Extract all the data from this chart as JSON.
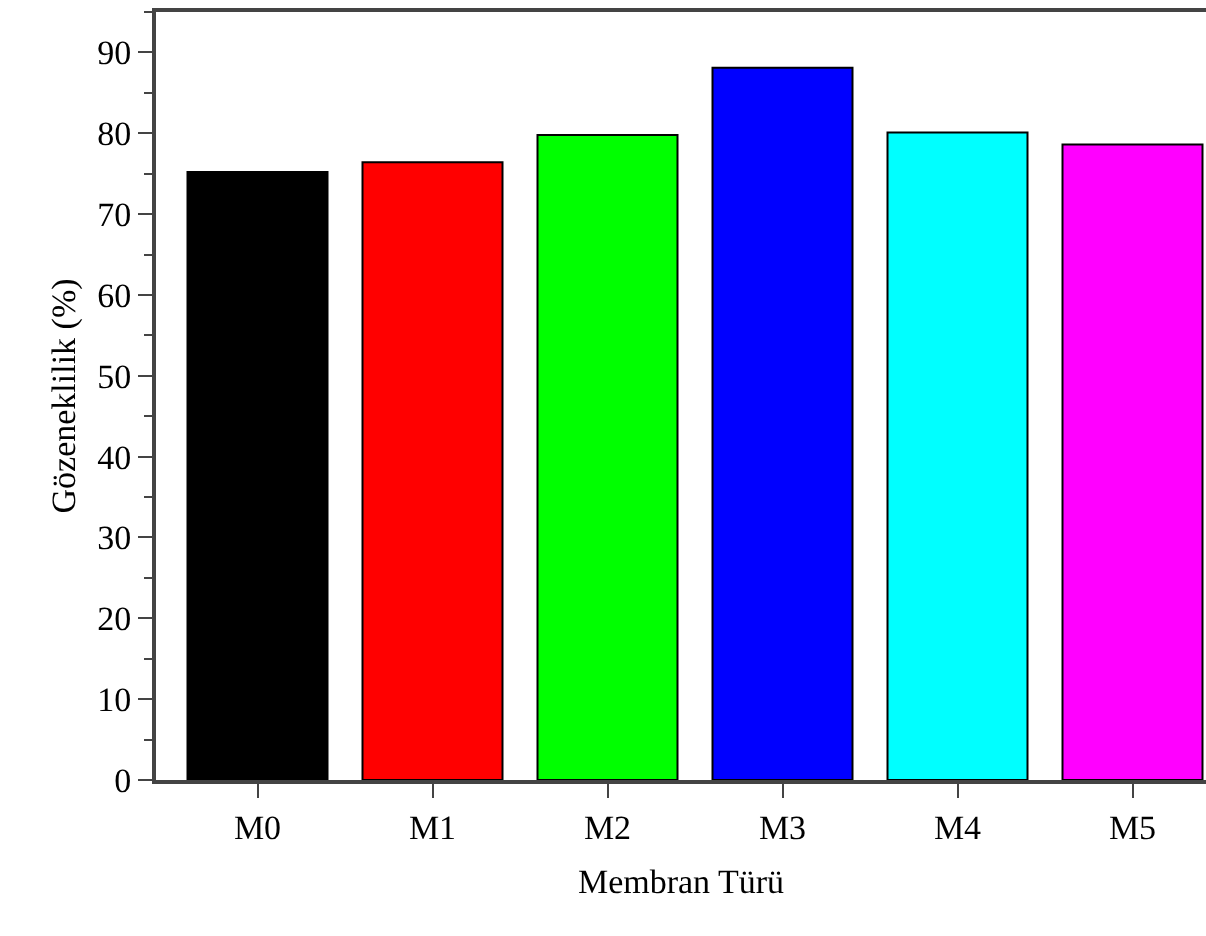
{
  "chart_data": {
    "type": "bar",
    "xlabel": "Membran Türü",
    "ylabel": "Gözeneklilik (%)",
    "categories": [
      "M0",
      "M1",
      "M2",
      "M3",
      "M4",
      "M5"
    ],
    "values": [
      75.2,
      76.4,
      79.8,
      88.1,
      80.1,
      78.6
    ],
    "colors": [
      "#000000",
      "#ff0000",
      "#00ff00",
      "#0000ff",
      "#00ffff",
      "#ff00ff"
    ],
    "ylim": [
      0,
      95
    ],
    "yticks": [
      0,
      10,
      20,
      30,
      40,
      50,
      60,
      70,
      80,
      90
    ],
    "grid": false
  }
}
